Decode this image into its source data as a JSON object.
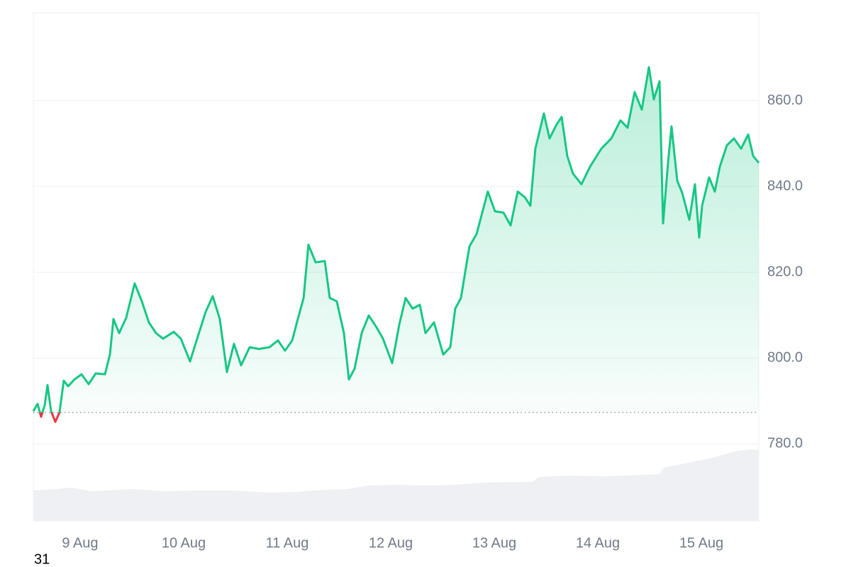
{
  "chart_data": {
    "type": "line",
    "x": [
      8.548,
      8.589,
      8.623,
      8.658,
      8.685,
      8.719,
      8.76,
      8.801,
      8.842,
      8.884,
      8.945,
      9.014,
      9.082,
      9.151,
      9.24,
      9.288,
      9.322,
      9.377,
      9.445,
      9.527,
      9.596,
      9.664,
      9.733,
      9.801,
      9.904,
      9.973,
      10.062,
      10.13,
      10.212,
      10.281,
      10.349,
      10.418,
      10.486,
      10.555,
      10.637,
      10.726,
      10.829,
      10.911,
      10.979,
      11.048,
      11.103,
      11.158,
      11.205,
      11.274,
      11.363,
      11.411,
      11.479,
      11.548,
      11.596,
      11.651,
      11.719,
      11.788,
      11.856,
      11.925,
      12.014,
      12.082,
      12.144,
      12.212,
      12.281,
      12.336,
      12.418,
      12.507,
      12.575,
      12.623,
      12.678,
      12.76,
      12.829,
      12.938,
      13.007,
      13.089,
      13.158,
      13.226,
      13.295,
      13.349,
      13.397,
      13.479,
      13.534,
      13.603,
      13.651,
      13.705,
      13.76,
      13.842,
      13.925,
      14.034,
      14.13,
      14.219,
      14.288,
      14.356,
      14.425,
      14.493,
      14.541,
      14.596,
      14.63,
      14.678,
      14.712,
      14.767,
      14.815,
      14.884,
      14.938,
      14.979,
      15.007,
      15.075,
      15.13,
      15.178,
      15.247,
      15.315,
      15.384,
      15.452,
      15.5,
      15.555
    ],
    "series": [
      {
        "color": "#16c784",
        "color_below": "#ea3943",
        "values": [
          787.6,
          789.3,
          786.3,
          789,
          793.7,
          787.6,
          785.1,
          787.3,
          794.7,
          793.4,
          795,
          796.2,
          793.9,
          796.4,
          796.2,
          800.8,
          809.1,
          805.8,
          809.4,
          817.4,
          813.2,
          808.3,
          805.8,
          804.5,
          806.1,
          804.5,
          799.2,
          804.5,
          810.7,
          814.4,
          809.1,
          796.7,
          803.3,
          798.3,
          802.5,
          802.1,
          802.5,
          804.1,
          801.7,
          804.1,
          809.1,
          814,
          826.4,
          822.3,
          822.6,
          814,
          813.2,
          805.8,
          795,
          797.5,
          805.8,
          809.9,
          807.4,
          804.5,
          798.8,
          807.8,
          814,
          811.5,
          812.4,
          805.8,
          808.3,
          800.8,
          802.5,
          811.5,
          814,
          826,
          828.9,
          838.8,
          834.2,
          833.9,
          830.9,
          838.8,
          837.5,
          835.5,
          848.8,
          857,
          851.2,
          854.5,
          856.2,
          847.1,
          843,
          840.5,
          844.6,
          848.8,
          851.2,
          855.4,
          853.7,
          862,
          857.9,
          867.8,
          860.3,
          864.5,
          831.4,
          845.5,
          854,
          841.3,
          838.5,
          832.2,
          840.5,
          828.1,
          835.5,
          842.1,
          838.8,
          844.6,
          849.6,
          851.2,
          848.8,
          852.1,
          847.1,
          845.5
        ]
      }
    ],
    "baseline": 787.3,
    "xlim": [
      8.548,
      15.555
    ],
    "xticks": [
      {
        "value": 9,
        "label": "9 Aug"
      },
      {
        "value": 10,
        "label": "10 Aug"
      },
      {
        "value": 11,
        "label": "11 Aug"
      },
      {
        "value": 12,
        "label": "12 Aug"
      },
      {
        "value": 13,
        "label": "13 Aug"
      },
      {
        "value": 14,
        "label": "14 Aug"
      },
      {
        "value": 15,
        "label": "15 Aug"
      }
    ],
    "ylim": [
      762,
      880.5
    ],
    "yticks": [
      {
        "value": 780,
        "label": "780.0"
      },
      {
        "value": 800,
        "label": "800.0"
      },
      {
        "value": 820,
        "label": "820.0"
      },
      {
        "value": 840,
        "label": "840.0"
      },
      {
        "value": 860,
        "label": "860.0"
      }
    ],
    "grid": true,
    "footnote": "31"
  }
}
